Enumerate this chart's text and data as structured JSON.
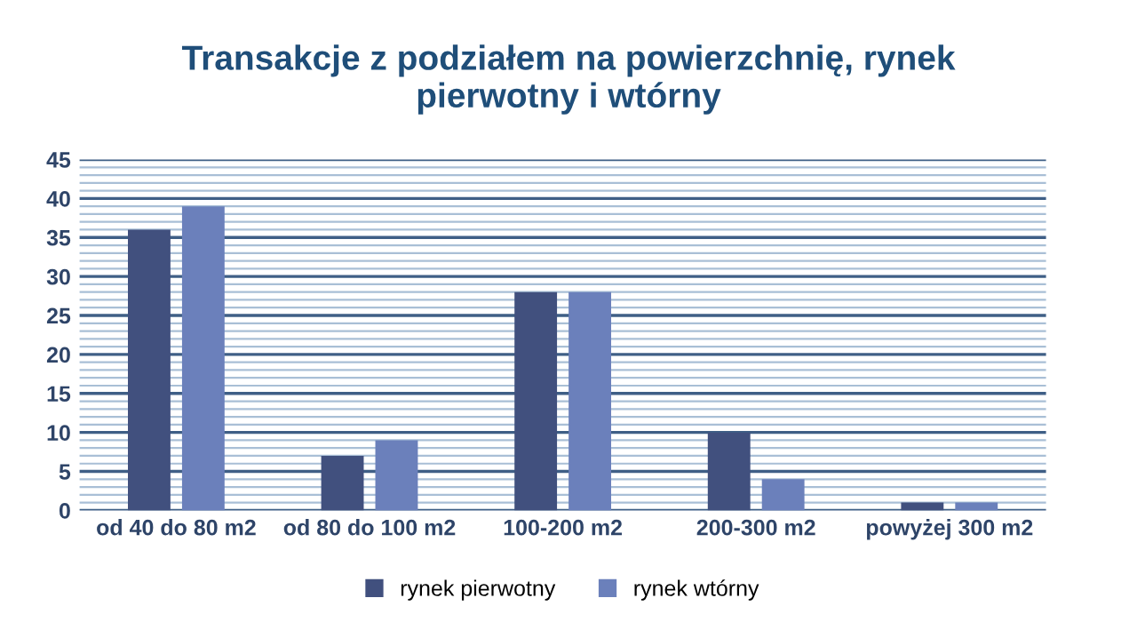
{
  "chart_data": {
    "type": "bar",
    "title": "Transakcje z podziałem na powierzchnię, rynek\npierwotny i wtórny",
    "categories": [
      "od 40 do 80 m2",
      "od 80 do 100 m2",
      "100-200 m2",
      "200-300 m2",
      "powyżej 300 m2"
    ],
    "series": [
      {
        "name": "rynek pierwotny",
        "color": "#41507e",
        "values": [
          36,
          7,
          28,
          10,
          1
        ]
      },
      {
        "name": "rynek wtórny",
        "color": "#6b80bb",
        "values": [
          39,
          9,
          28,
          4,
          1
        ]
      }
    ],
    "ylim": [
      0,
      45
    ],
    "yticks": [
      0,
      {
        "value": 1,
        "label": null
      },
      {
        "value": 2,
        "label": null
      },
      {
        "value": 3,
        "label": null
      },
      {
        "value": 4,
        "label": null
      },
      5,
      {
        "value": 6,
        "label": null
      },
      {
        "value": 7,
        "label": null
      },
      {
        "value": 8,
        "label": null
      },
      {
        "value": 9,
        "label": null
      },
      10,
      {
        "value": 11,
        "label": null
      },
      {
        "value": 12,
        "label": null
      },
      {
        "value": 13,
        "label": null
      },
      {
        "value": 14,
        "label": null
      },
      15,
      {
        "value": 16,
        "label": null
      },
      {
        "value": 17,
        "label": null
      },
      {
        "value": 18,
        "label": null
      },
      {
        "value": 19,
        "label": null
      },
      20,
      {
        "value": 21,
        "label": null
      },
      {
        "value": 22,
        "label": null
      },
      {
        "value": 23,
        "label": null
      },
      {
        "value": 24,
        "label": null
      },
      25,
      {
        "value": 26,
        "label": null
      },
      {
        "value": 27,
        "label": null
      },
      {
        "value": 28,
        "label": null
      },
      {
        "value": 29,
        "label": null
      },
      30,
      {
        "value": 31,
        "label": null
      },
      {
        "value": 32,
        "label": null
      },
      {
        "value": 33,
        "label": null
      },
      {
        "value": 34,
        "label": null
      },
      35,
      {
        "value": 36,
        "label": null
      },
      {
        "value": 37,
        "label": null
      },
      {
        "value": 38,
        "label": null
      },
      {
        "value": 39,
        "label": null
      },
      40,
      {
        "value": 41,
        "label": null
      },
      {
        "value": 42,
        "label": null
      },
      {
        "value": 43,
        "label": null
      },
      {
        "value": 44,
        "label": null
      },
      45
    ],
    "grid": "y",
    "legend": "bottom"
  }
}
